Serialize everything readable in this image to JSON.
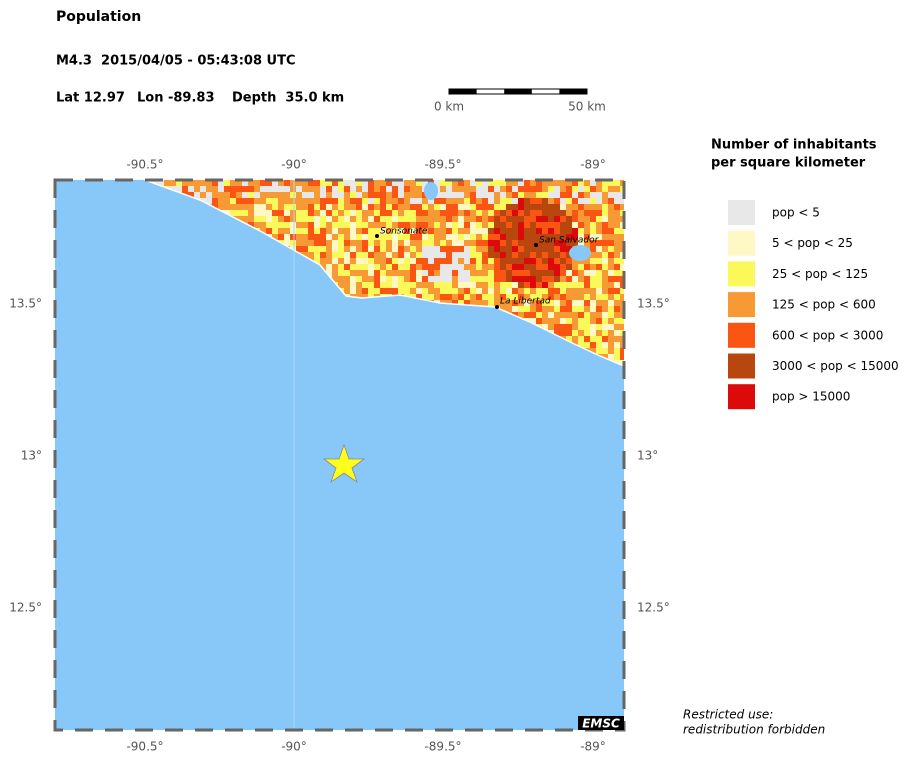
{
  "header": {
    "title": "Population",
    "event": "M4.3  2015/04/05 - 05:43:08 UTC",
    "lat": "Lat 12.97",
    "lon": "Lon -89.83",
    "depth": "Depth  35.0 km"
  },
  "scale_bar": {
    "start": "0 km",
    "end": "50 km"
  },
  "map": {
    "lon_labels": [
      "-90.5°",
      "-90°",
      "-89.5°",
      "-89°"
    ],
    "lat_labels": [
      "13.5°",
      "13°",
      "12.5°"
    ],
    "cities": [
      "Sonsonate",
      "San Salvador",
      "La Libertad"
    ],
    "credit": "EMSC"
  },
  "legend": {
    "title": [
      "Number of inhabitants",
      "per square kilometer"
    ],
    "items": [
      {
        "label": "pop < 5",
        "color": "#e8e8e8"
      },
      {
        "label": "5 < pop < 25",
        "color": "#fdf8c4"
      },
      {
        "label": "25 < pop < 125",
        "color": "#fbf85a"
      },
      {
        "label": "125 < pop < 600",
        "color": "#f79a35"
      },
      {
        "label": "600 < pop < 3000",
        "color": "#fb5514"
      },
      {
        "label": "3000 < pop < 15000",
        "color": "#b8460f"
      },
      {
        "label": "pop > 15000",
        "color": "#dc0a0a"
      }
    ]
  },
  "notice": [
    "Restricted use:",
    "redistribution forbidden"
  ]
}
